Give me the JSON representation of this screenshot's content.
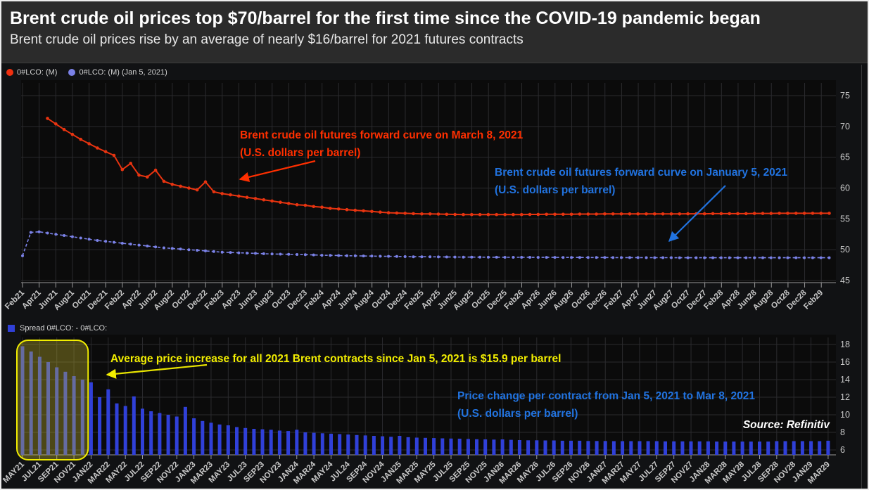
{
  "header": {
    "title": "Brent crude oil prices top $70/barrel for the first time since the COVID-19 pandemic began",
    "subtitle": "Brent crude oil prices rise by an average of nearly $16/barrel for 2021 futures contracts"
  },
  "colors": {
    "red_series": "#e83410",
    "blue_series": "#7b82e8",
    "bar_blue": "#3040d8",
    "bar_highlight_overlay": "#d2c232",
    "annotation_red": "#ff2f00",
    "annotation_blue": "#2173e0",
    "annotation_yellow": "#f2ee00",
    "axis_label": "#c8c8c8",
    "grid": "#2b2b2e",
    "axis_line": "#9a9a9a",
    "header_bg": "#2b2b2b"
  },
  "top_legend": {
    "items": [
      {
        "label": "0#LCO: (M)",
        "marker": "red-circle"
      },
      {
        "label": "0#LCO: (M) (Jan 5, 2021)",
        "marker": "blue-circle"
      }
    ]
  },
  "bottom_legend": {
    "label": "Spread 0#LCO:  -  0#LCO:",
    "marker": "blue-square"
  },
  "annotations": {
    "red": {
      "line1": "Brent crude oil futures forward curve on March 8, 2021",
      "line2": "(U.S. dollars per barrel)"
    },
    "blue": {
      "line1": "Brent crude oil futures forward curve on January 5, 2021",
      "line2": "(U.S. dollars per barrel)"
    },
    "yellow": "Average price increase for all 2021 Brent contracts since Jan 5, 2021 is $15.9 per barrel",
    "price_change": {
      "line1": "Price change per contract from Jan 5, 2021 to Mar 8, 2021",
      "line2": "(U.S. dollars per barrel)"
    },
    "source": "Source: Refinitiv"
  },
  "chart_data": [
    {
      "type": "line",
      "title": "Brent crude oil futures forward curves (U.S. dollars per barrel)",
      "ylim": [
        45,
        77
      ],
      "y_ticks": [
        75,
        70,
        65,
        60,
        55,
        50,
        45
      ],
      "grid": true,
      "legend_position": "top-left",
      "x_tick_labels": [
        "Feb21",
        "Apr21",
        "Jun21",
        "Aug21",
        "Oct21",
        "Dec21",
        "Feb22",
        "Apr22",
        "Jun22",
        "Aug22",
        "Oct22",
        "Dec22",
        "Feb23",
        "Apr23",
        "Jun23",
        "Aug23",
        "Oct23",
        "Dec23",
        "Feb24",
        "Apr24",
        "Jun24",
        "Aug24",
        "Oct24",
        "Dec24",
        "Feb25",
        "Apr25",
        "Jun25",
        "Aug25",
        "Oct25",
        "Dec25",
        "Feb26",
        "Apr26",
        "Jun26",
        "Aug26",
        "Oct26",
        "Dec26",
        "Feb27",
        "Apr27",
        "Jun27",
        "Aug27",
        "Oct27",
        "Dec27",
        "Feb28",
        "Apr28",
        "Jun28",
        "Aug28",
        "Oct28",
        "Dec28",
        "Feb29"
      ],
      "series": [
        {
          "name": "0#LCO: (M)",
          "description": "Brent crude oil futures forward curve on March 8, 2021",
          "color_key": "red_series",
          "x_start": "May-2021",
          "x_freq": "monthly",
          "values": [
            71.3,
            70.4,
            69.5,
            68.7,
            67.9,
            67.2,
            66.5,
            65.9,
            65.3,
            63.0,
            64.0,
            62.1,
            61.8,
            62.9,
            61.1,
            60.6,
            60.3,
            60.0,
            59.7,
            61.0,
            59.4,
            59.1,
            58.9,
            58.7,
            58.5,
            58.3,
            58.1,
            57.9,
            57.7,
            57.5,
            57.3,
            57.2,
            57.0,
            56.9,
            56.7,
            56.6,
            56.5,
            56.4,
            56.3,
            56.2,
            56.1,
            56.0,
            55.95,
            55.9,
            55.85,
            55.8,
            55.8,
            55.78,
            55.75,
            55.72,
            55.7,
            55.7,
            55.7,
            55.7,
            55.7,
            55.7,
            55.7,
            55.7,
            55.72,
            55.72,
            55.75,
            55.75,
            55.75,
            55.75,
            55.78,
            55.78,
            55.78,
            55.8,
            55.8,
            55.8,
            55.8,
            55.8,
            55.8,
            55.8,
            55.8,
            55.8,
            55.8,
            55.82,
            55.82,
            55.82,
            55.85,
            55.85,
            55.85,
            55.85,
            55.85,
            55.88,
            55.88,
            55.88,
            55.9,
            55.9,
            55.9,
            55.9,
            55.9,
            55.9,
            55.9
          ]
        },
        {
          "name": "0#LCO: (M) (Jan 5, 2021)",
          "description": "Brent crude oil futures forward curve on January 5, 2021",
          "color_key": "blue_series",
          "x_start": "Feb-2021",
          "x_freq": "monthly",
          "values": [
            49.0,
            52.8,
            52.9,
            52.7,
            52.5,
            52.3,
            52.1,
            51.9,
            51.7,
            51.5,
            51.35,
            51.2,
            51.05,
            50.9,
            50.75,
            50.6,
            50.45,
            50.3,
            50.2,
            50.1,
            50.0,
            49.9,
            49.8,
            49.7,
            49.6,
            49.55,
            49.5,
            49.45,
            49.4,
            49.35,
            49.3,
            49.28,
            49.25,
            49.22,
            49.2,
            49.15,
            49.1,
            49.08,
            49.05,
            49.02,
            49.0,
            48.98,
            48.96,
            48.94,
            48.92,
            48.9,
            48.88,
            48.86,
            48.85,
            48.84,
            48.83,
            48.82,
            48.81,
            48.8,
            48.8,
            48.79,
            48.78,
            48.78,
            48.77,
            48.77,
            48.76,
            48.76,
            48.75,
            48.75,
            48.75,
            48.74,
            48.74,
            48.74,
            48.73,
            48.73,
            48.73,
            48.72,
            48.72,
            48.72,
            48.72,
            48.71,
            48.71,
            48.71,
            48.71,
            48.7,
            48.7,
            48.7,
            48.7,
            48.7,
            48.7,
            48.7,
            48.7,
            48.7,
            48.7,
            48.7,
            48.7,
            48.7,
            48.7,
            48.7,
            48.7,
            48.7,
            48.7,
            48.7
          ]
        }
      ]
    },
    {
      "type": "bar",
      "title": "Spread: price change per contract from Jan 5, 2021 to Mar 8, 2021 (U.S. dollars per barrel)",
      "name": "Spread 0#LCO:  -  0#LCO:",
      "ylim": [
        5.4,
        18.6
      ],
      "y_ticks": [
        18,
        16,
        14,
        12,
        10,
        8,
        6
      ],
      "grid": true,
      "x_start": "May-2021",
      "x_freq": "monthly",
      "x_tick_labels": [
        "MAY21",
        "JUL21",
        "SEP21",
        "NOV21",
        "JAN22",
        "MAR22",
        "MAY22",
        "JUL22",
        "SEP22",
        "NOV22",
        "JAN23",
        "MAR23",
        "MAY23",
        "JUL23",
        "SEP23",
        "NOV23",
        "JAN24",
        "MAR24",
        "MAY24",
        "JUL24",
        "SEP24",
        "NOV24",
        "JAN25",
        "MAR25",
        "MAY25",
        "JUL25",
        "SEP25",
        "NOV25",
        "JAN26",
        "MAR26",
        "MAY26",
        "JUL26",
        "SEP26",
        "NOV26",
        "JAN27",
        "MAR27",
        "MAY27",
        "JUL27",
        "SEP27",
        "NOV27",
        "JAN28",
        "MAR28",
        "MAY28",
        "JUL28",
        "SEP28",
        "NOV28",
        "JAN29",
        "MAR29"
      ],
      "values": [
        17.8,
        17.2,
        16.6,
        16.0,
        15.4,
        14.9,
        14.4,
        14.0,
        13.7,
        12.0,
        12.9,
        11.3,
        11.0,
        12.1,
        10.7,
        10.4,
        10.2,
        10.0,
        9.8,
        10.9,
        9.6,
        9.3,
        9.1,
        8.9,
        8.8,
        8.6,
        8.5,
        8.4,
        8.35,
        8.3,
        8.2,
        8.15,
        8.3,
        8.0,
        7.95,
        7.9,
        7.85,
        7.8,
        7.75,
        7.7,
        7.65,
        7.6,
        7.55,
        7.5,
        7.6,
        7.45,
        7.4,
        7.38,
        7.35,
        7.32,
        7.3,
        7.28,
        7.25,
        7.22,
        7.2,
        7.18,
        7.2,
        7.15,
        7.12,
        7.1,
        7.1,
        7.08,
        7.08,
        7.05,
        7.05,
        7.05,
        7.02,
        7.02,
        7.02,
        7.0,
        7.0,
        7.0,
        7.0,
        7.0,
        7.0,
        6.98,
        6.98,
        6.98,
        6.98,
        6.98,
        6.98,
        6.95,
        6.95,
        6.95,
        6.95,
        6.95,
        6.95,
        6.95,
        7.0,
        7.0,
        7.0,
        7.0,
        7.0,
        7.0,
        7.05
      ],
      "highlight": {
        "label": "2021 Brent contracts",
        "bars_start": 0,
        "bars_end": 7,
        "avg_value": 15.9
      }
    }
  ]
}
